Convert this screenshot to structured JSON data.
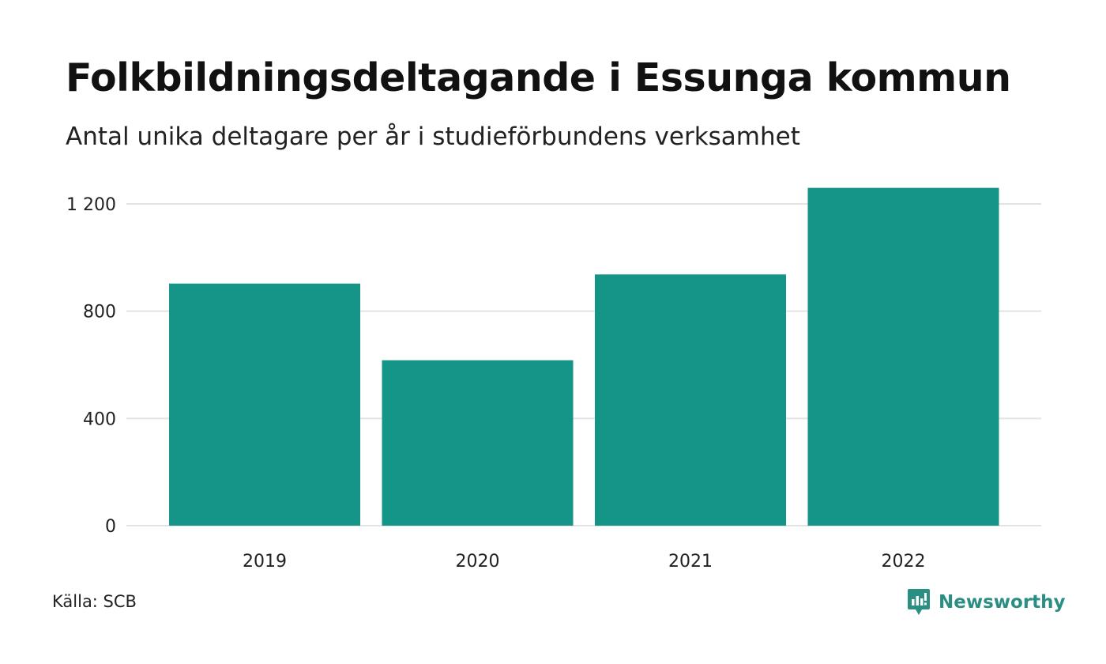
{
  "title": "Folkbildningsdeltagande i Essunga kommun",
  "subtitle": "Antal unika deltagare per år i studieförbundens verksamhet",
  "source": "Källa: SCB",
  "brand": {
    "name": "Newsworthy",
    "icon": "newsworthy-logo-icon",
    "color": "#2a8f82"
  },
  "chart_data": {
    "type": "bar",
    "categories": [
      "2019",
      "2020",
      "2021",
      "2022"
    ],
    "values": [
      903,
      617,
      937,
      1260
    ],
    "y_ticks": [
      0,
      400,
      800,
      1200
    ],
    "y_tick_labels": [
      "0",
      "400",
      "800",
      "1 200"
    ],
    "ylim": [
      0,
      1260
    ],
    "grid": true,
    "bar_color": "#159587",
    "grid_color": "#e3e3e3"
  }
}
